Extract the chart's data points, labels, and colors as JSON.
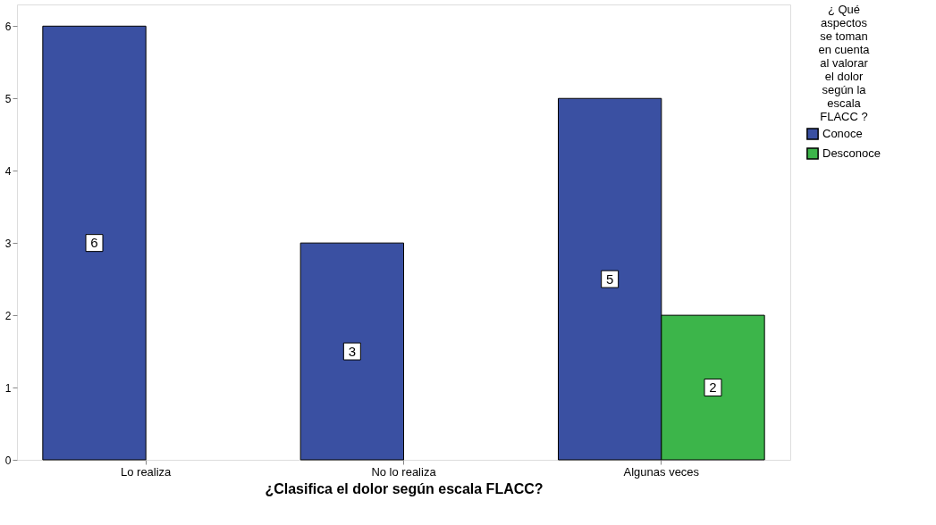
{
  "chart_data": {
    "type": "bar",
    "xlabel": "¿Clasifica el dolor según escala FLACC?",
    "legend_title": "¿ Qué aspectos se toman en cuenta al valorar el dolor según la escala FLACC ?",
    "categories": [
      "Lo realiza",
      "No lo realiza",
      "Algunas veces"
    ],
    "series": [
      {
        "name": "Conoce",
        "color": "#3a50a2",
        "values": [
          6,
          3,
          5
        ]
      },
      {
        "name": "Desconoce",
        "color": "#3cb54a",
        "values": [
          null,
          null,
          2
        ]
      }
    ],
    "ylim": [
      0,
      6.3
    ],
    "yticks": [
      0,
      1,
      2,
      3,
      4,
      5,
      6
    ],
    "data_labels": true,
    "legend": "top right",
    "grid": false
  }
}
